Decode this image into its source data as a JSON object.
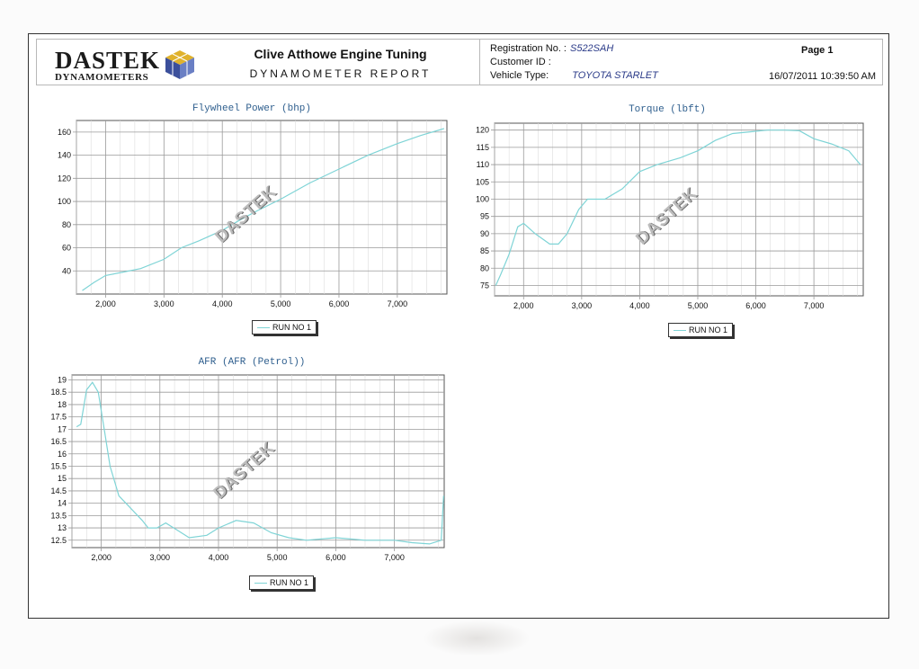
{
  "header": {
    "logo_main": "DASTEK",
    "logo_sub": "DYNAMOMETERS",
    "company": "Clive Atthowe Engine Tuning",
    "report_title": "DYNAMOMETER REPORT",
    "registration_label": "Registration No. :",
    "registration_value": "S522SAH",
    "customer_label": "Customer ID :",
    "vehicle_label": "Vehicle Type:",
    "vehicle_value": "TOYOTA STARLET",
    "page_label": "Page 1",
    "datetime": "16/07/2011 10:39:50 AM"
  },
  "watermark_text": "DASTEK",
  "colors": {
    "series": "#7fd4d6",
    "grid": "#9a9a9a",
    "title": "#2f5f8e"
  },
  "chart_data": [
    {
      "type": "line",
      "title": "Flywheel Power (bhp)",
      "xlabel": "",
      "ylabel": "",
      "xlim": [
        1500,
        7850
      ],
      "ylim": [
        20,
        170
      ],
      "xticks": [
        2000,
        3000,
        4000,
        5000,
        6000,
        7000
      ],
      "xtick_labels": [
        "2,000",
        "3,000",
        "4,000",
        "5,000",
        "6,000",
        "7,000"
      ],
      "yticks": [
        40,
        60,
        80,
        100,
        120,
        140,
        160
      ],
      "grid": true,
      "legend": "bottom-center",
      "series": [
        {
          "name": "RUN NO 1",
          "x": [
            1600,
            1800,
            2000,
            2300,
            2600,
            3000,
            3300,
            3600,
            4000,
            4300,
            4600,
            5000,
            5500,
            6000,
            6500,
            7000,
            7400,
            7800
          ],
          "y": [
            23,
            30,
            36,
            39,
            42,
            50,
            60,
            66,
            75,
            84,
            92,
            102,
            116,
            128,
            140,
            150,
            157,
            163
          ]
        }
      ]
    },
    {
      "type": "line",
      "title": "Torque (lbft)",
      "xlabel": "",
      "ylabel": "",
      "xlim": [
        1500,
        7850
      ],
      "ylim": [
        72,
        122
      ],
      "xticks": [
        2000,
        3000,
        4000,
        5000,
        6000,
        7000
      ],
      "xtick_labels": [
        "2,000",
        "3,000",
        "4,000",
        "5,000",
        "6,000",
        "7,000"
      ],
      "yticks": [
        75,
        80,
        85,
        90,
        95,
        100,
        105,
        110,
        115,
        120
      ],
      "grid": true,
      "legend": "bottom-center",
      "series": [
        {
          "name": "RUN NO 1",
          "x": [
            1520,
            1600,
            1750,
            1900,
            2000,
            2200,
            2450,
            2600,
            2750,
            2950,
            3100,
            3400,
            3700,
            4000,
            4300,
            4700,
            5000,
            5300,
            5600,
            5900,
            6200,
            6500,
            6750,
            7000,
            7300,
            7600,
            7800
          ],
          "y": [
            75,
            78,
            84,
            92,
            93,
            90,
            87,
            87,
            90,
            97,
            100,
            100,
            103,
            108,
            110,
            112,
            114,
            117,
            119,
            119.5,
            120,
            120,
            119.8,
            117.5,
            116,
            114,
            110
          ]
        }
      ]
    },
    {
      "type": "line",
      "title": "AFR (AFR (Petrol))",
      "xlabel": "",
      "ylabel": "",
      "xlim": [
        1500,
        7850
      ],
      "ylim": [
        12.2,
        19.2
      ],
      "xticks": [
        2000,
        3000,
        4000,
        5000,
        6000,
        7000
      ],
      "xtick_labels": [
        "2,000",
        "3,000",
        "4,000",
        "5,000",
        "6,000",
        "7,000"
      ],
      "yticks": [
        12.5,
        13,
        13.5,
        14,
        14.5,
        15,
        15.5,
        16,
        16.5,
        17,
        17.5,
        18,
        18.5,
        19
      ],
      "grid": true,
      "legend": "bottom-center",
      "series": [
        {
          "name": "RUN NO 1",
          "x": [
            1580,
            1650,
            1750,
            1850,
            1950,
            2050,
            2150,
            2300,
            2500,
            2700,
            2800,
            2950,
            3100,
            3300,
            3500,
            3800,
            4000,
            4300,
            4600,
            4900,
            5200,
            5500,
            6000,
            6500,
            7000,
            7300,
            7600,
            7800,
            7840
          ],
          "y": [
            17.1,
            17.2,
            18.6,
            18.9,
            18.5,
            17.0,
            15.5,
            14.3,
            13.8,
            13.3,
            13.0,
            13.0,
            13.2,
            12.9,
            12.6,
            12.7,
            13.0,
            13.3,
            13.2,
            12.8,
            12.6,
            12.5,
            12.6,
            12.5,
            12.5,
            12.4,
            12.35,
            12.5,
            14.3
          ]
        }
      ]
    }
  ]
}
